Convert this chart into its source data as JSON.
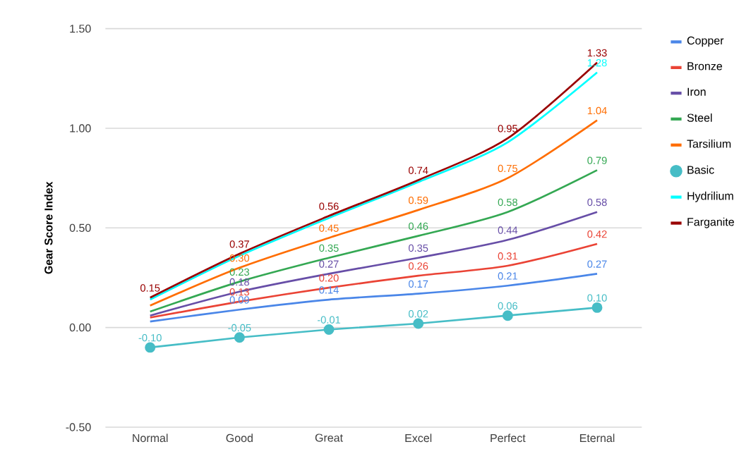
{
  "chart_data": {
    "type": "line",
    "ylabel": "Gear Score Index",
    "categories": [
      "Normal",
      "Good",
      "Great",
      "Excel",
      "Perfect",
      "Eternal"
    ],
    "series": [
      {
        "name": "Copper",
        "color": "#4a86e8",
        "values": [
          0.03,
          0.09,
          0.14,
          0.17,
          0.21,
          0.27
        ],
        "value_labels": [
          null,
          "0.09",
          "0.14",
          "0.17",
          "0.21",
          "0.27"
        ]
      },
      {
        "name": "Bronze",
        "color": "#ea4335",
        "values": [
          0.05,
          0.13,
          0.2,
          0.26,
          0.31,
          0.42
        ],
        "value_labels": [
          null,
          "0.13",
          "0.20",
          "0.26",
          "0.31",
          "0.42"
        ]
      },
      {
        "name": "Iron",
        "color": "#674ea7",
        "values": [
          0.06,
          0.18,
          0.27,
          0.35,
          0.44,
          0.58
        ],
        "value_labels": [
          null,
          "0.18",
          "0.27",
          "0.35",
          "0.44",
          "0.58"
        ]
      },
      {
        "name": "Steel",
        "color": "#34a853",
        "values": [
          0.08,
          0.23,
          0.35,
          0.46,
          0.58,
          0.79
        ],
        "value_labels": [
          null,
          "0.23",
          "0.35",
          "0.46",
          "0.58",
          "0.79"
        ]
      },
      {
        "name": "Tarsilium",
        "color": "#ff6d01",
        "values": [
          0.11,
          0.3,
          0.45,
          0.59,
          0.75,
          1.04
        ],
        "value_labels": [
          null,
          "0.30",
          "0.45",
          "0.59",
          "0.75",
          "1.04"
        ]
      },
      {
        "name": "Basic",
        "color": "#46bdc6",
        "marker": "circle",
        "line_style": "solid",
        "values": [
          -0.1,
          -0.05,
          -0.01,
          0.02,
          0.06,
          0.1
        ],
        "value_labels": [
          "-0.10",
          "-0.05",
          "-0.01",
          "0.02",
          "0.06",
          "0.10"
        ]
      },
      {
        "name": "Hydrilium",
        "color": "#00ffff",
        "values": [
          0.14,
          0.36,
          0.55,
          0.73,
          0.93,
          1.28
        ],
        "value_labels": [
          null,
          null,
          null,
          null,
          null,
          "1.28"
        ]
      },
      {
        "name": "Farganite",
        "color": "#990000",
        "values": [
          0.15,
          0.37,
          0.56,
          0.74,
          0.95,
          1.33
        ],
        "value_labels": [
          "0.15",
          "0.37",
          "0.56",
          "0.74",
          "0.95",
          "1.33"
        ]
      }
    ],
    "ylim": [
      -0.5,
      1.5
    ],
    "yticks": [
      {
        "value": -0.5,
        "label": "-0.50"
      },
      {
        "value": 0,
        "label": "0.00"
      },
      {
        "value": 0.5,
        "label": "0.50"
      },
      {
        "value": 1,
        "label": "1.00"
      },
      {
        "value": 1.5,
        "label": "1.50"
      }
    ],
    "grid": "y",
    "legend": "right"
  }
}
